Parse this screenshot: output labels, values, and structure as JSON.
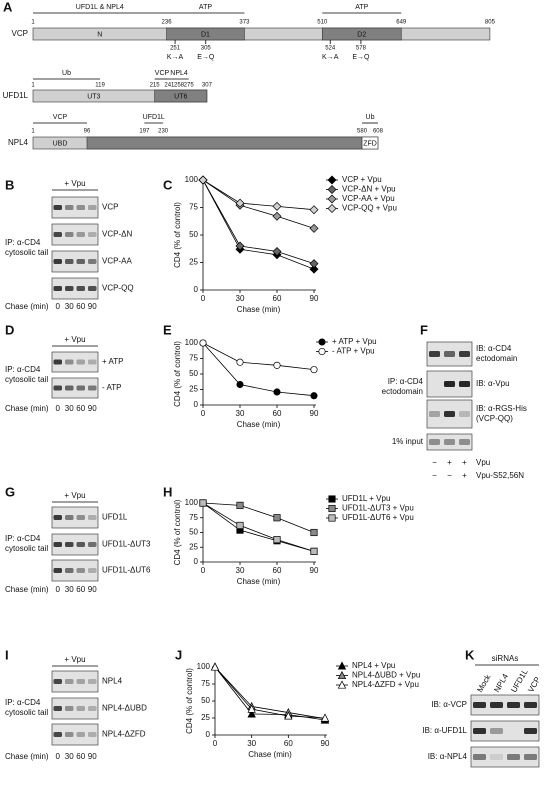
{
  "panels": {
    "A": {
      "label": "A",
      "proteins": [
        {
          "name": "VCP",
          "positions": [
            1,
            236,
            373,
            510,
            649,
            805
          ],
          "domains": [
            {
              "label": "N"
            },
            {
              "label": "D1"
            },
            {
              "label": "D2"
            }
          ],
          "features": [
            {
              "label": "UFD1L & NPL4"
            },
            {
              "label": "ATP"
            },
            {
              "label": "ATP"
            }
          ],
          "mutations": [
            {
              "position": 251,
              "change": "K→A"
            },
            {
              "position": 305,
              "change": "E→Q"
            },
            {
              "position": 524,
              "change": "K→A"
            },
            {
              "position": 578,
              "change": "E→Q"
            }
          ]
        },
        {
          "name": "UFD1L",
          "positions": [
            1,
            119,
            215,
            241,
            258,
            275,
            307
          ],
          "domains": [
            {
              "label": "UT3"
            },
            {
              "label": "UT6"
            }
          ],
          "features": [
            {
              "label": "Ub"
            },
            {
              "label": "VCP"
            },
            {
              "label": "NPL4"
            }
          ]
        },
        {
          "name": "NPL4",
          "positions": [
            1,
            96,
            197,
            230,
            580,
            608
          ],
          "domains": [
            {
              "label": "UBD"
            },
            {
              "label": "ZFD"
            }
          ],
          "features": [
            {
              "label": "VCP"
            },
            {
              "label": "UFD1L"
            },
            {
              "label": "Ub"
            }
          ]
        }
      ]
    },
    "B": {
      "label": "B",
      "treatment": "+ Vpu",
      "ip_label": [
        "IP: α-CD4",
        "cytosolic tail"
      ],
      "rows": [
        "VCP",
        "VCP-ΔN",
        "VCP-AA",
        "VCP-QQ"
      ],
      "chase_label": "Chase (min)",
      "lanes": [
        0,
        30,
        60,
        90
      ]
    },
    "D": {
      "label": "D",
      "treatment": "+ Vpu",
      "ip_label": [
        "IP: α-CD4",
        "cytosolic tail"
      ],
      "rows": [
        "+ ATP",
        "- ATP"
      ],
      "chase_label": "Chase (min)",
      "lanes": [
        0,
        30,
        60,
        90
      ]
    },
    "F": {
      "label": "F",
      "ip_label": [
        "IP: α-CD4",
        "ectodomain"
      ],
      "blots": [
        [
          "IB: α-CD4",
          "ectodomain"
        ],
        [
          "IB: α-Vpu"
        ],
        [
          "IB: α-RGS-His",
          "(VCP-QQ)"
        ]
      ],
      "input_label": "1% input",
      "conditions": [
        {
          "signs": [
            "−",
            "+",
            "+"
          ],
          "label": "Vpu"
        },
        {
          "signs": [
            "−",
            "−",
            "+"
          ],
          "label": "Vpu-S52,56N"
        }
      ]
    },
    "G": {
      "label": "G",
      "treatment": "+ Vpu",
      "ip_label": [
        "IP: α-CD4",
        "cytosolic tail"
      ],
      "rows": [
        "UFD1L",
        "UFD1L-ΔUT3",
        "UFD1L-ΔUT6"
      ],
      "chase_label": "Chase (min)",
      "lanes": [
        0,
        30,
        60,
        90
      ]
    },
    "I": {
      "label": "I",
      "treatment": "+ Vpu",
      "ip_label": [
        "IP: α-CD4",
        "cytosolic tail"
      ],
      "rows": [
        "NPL4",
        "NPL4-ΔUBD",
        "NPL4-ΔZFD"
      ],
      "chase_label": "Chase (min)",
      "lanes": [
        0,
        30,
        60,
        90
      ]
    },
    "K": {
      "label": "K",
      "header": "siRNAs",
      "lanes": [
        "Mock",
        "NPL4",
        "UFD1L",
        "VCP"
      ],
      "blots": [
        "IB: α-VCP",
        "IB: α-UFD1L",
        "IB: α-NPL4"
      ]
    }
  },
  "chart_data": [
    {
      "type": "line",
      "panel_label": "C",
      "x_label": "Chase (min)",
      "y_label": "CD4 (% of control)",
      "marker": "diamond",
      "x": [
        0,
        30,
        60,
        90
      ],
      "xlim": [
        0,
        90
      ],
      "xticks": [
        0,
        30,
        60,
        90
      ],
      "ylim": [
        0,
        100
      ],
      "yticks": [
        0,
        25,
        50,
        75,
        100
      ],
      "series": [
        {
          "name": "VCP + Vpu",
          "color": "#000000",
          "values": [
            100,
            37,
            32,
            19
          ]
        },
        {
          "name": "VCP-ΔN + Vpu",
          "color": "#666666",
          "values": [
            100,
            40,
            35,
            24
          ]
        },
        {
          "name": "VCP-AA + Vpu",
          "color": "#999999",
          "values": [
            100,
            77,
            67,
            56
          ]
        },
        {
          "name": "VCP-QQ + Vpu",
          "color": "#d0d0d0",
          "values": [
            100,
            79,
            76,
            73
          ]
        }
      ]
    },
    {
      "type": "line",
      "panel_label": "E",
      "x_label": "Chase (min)",
      "y_label": "CD4 (% of control)",
      "marker": "circle",
      "x": [
        0,
        30,
        60,
        90
      ],
      "xlim": [
        0,
        90
      ],
      "xticks": [
        0,
        30,
        60,
        90
      ],
      "ylim": [
        0,
        100
      ],
      "yticks": [
        0,
        25,
        50,
        75,
        100
      ],
      "series": [
        {
          "name": "+ ATP + Vpu",
          "color": "#000000",
          "values": [
            100,
            33,
            21,
            15
          ]
        },
        {
          "name": "- ATP + Vpu",
          "color": "#ffffff",
          "values": [
            100,
            69,
            64,
            57
          ]
        }
      ]
    },
    {
      "type": "line",
      "panel_label": "H",
      "x_label": "Chase (min)",
      "y_label": "CD4 (% of control)",
      "marker": "square",
      "x": [
        0,
        30,
        60,
        90
      ],
      "xlim": [
        0,
        90
      ],
      "xticks": [
        0,
        30,
        60,
        90
      ],
      "ylim": [
        0,
        100
      ],
      "yticks": [
        0,
        25,
        50,
        75,
        100
      ],
      "series": [
        {
          "name": "UFD1L + Vpu",
          "color": "#000000",
          "values": [
            100,
            54,
            36,
            18
          ]
        },
        {
          "name": "UFD1L-ΔUT3 + Vpu",
          "color": "#888888",
          "values": [
            100,
            96,
            75,
            50
          ]
        },
        {
          "name": "UFD1L-ΔUT6 + Vpu",
          "color": "#bbbbbb",
          "values": [
            100,
            62,
            38,
            18
          ]
        }
      ]
    },
    {
      "type": "line",
      "panel_label": "J",
      "x_label": "Chase (min)",
      "y_label": "CD4 (% of control)",
      "marker": "triangle",
      "x": [
        0,
        30,
        60,
        90
      ],
      "xlim": [
        0,
        90
      ],
      "xticks": [
        0,
        30,
        60,
        90
      ],
      "ylim": [
        0,
        100
      ],
      "yticks": [
        0,
        25,
        50,
        75,
        100
      ],
      "series": [
        {
          "name": "NPL4 + Vpu",
          "color": "#000000",
          "values": [
            100,
            31,
            30,
            22
          ]
        },
        {
          "name": "NPL4-ΔUBD + Vpu",
          "color": "#888888",
          "values": [
            100,
            42,
            33,
            24
          ]
        },
        {
          "name": "NPL4-ΔZFD + Vpu",
          "color": "#ffffff",
          "values": [
            100,
            38,
            28,
            25
          ]
        }
      ]
    }
  ]
}
